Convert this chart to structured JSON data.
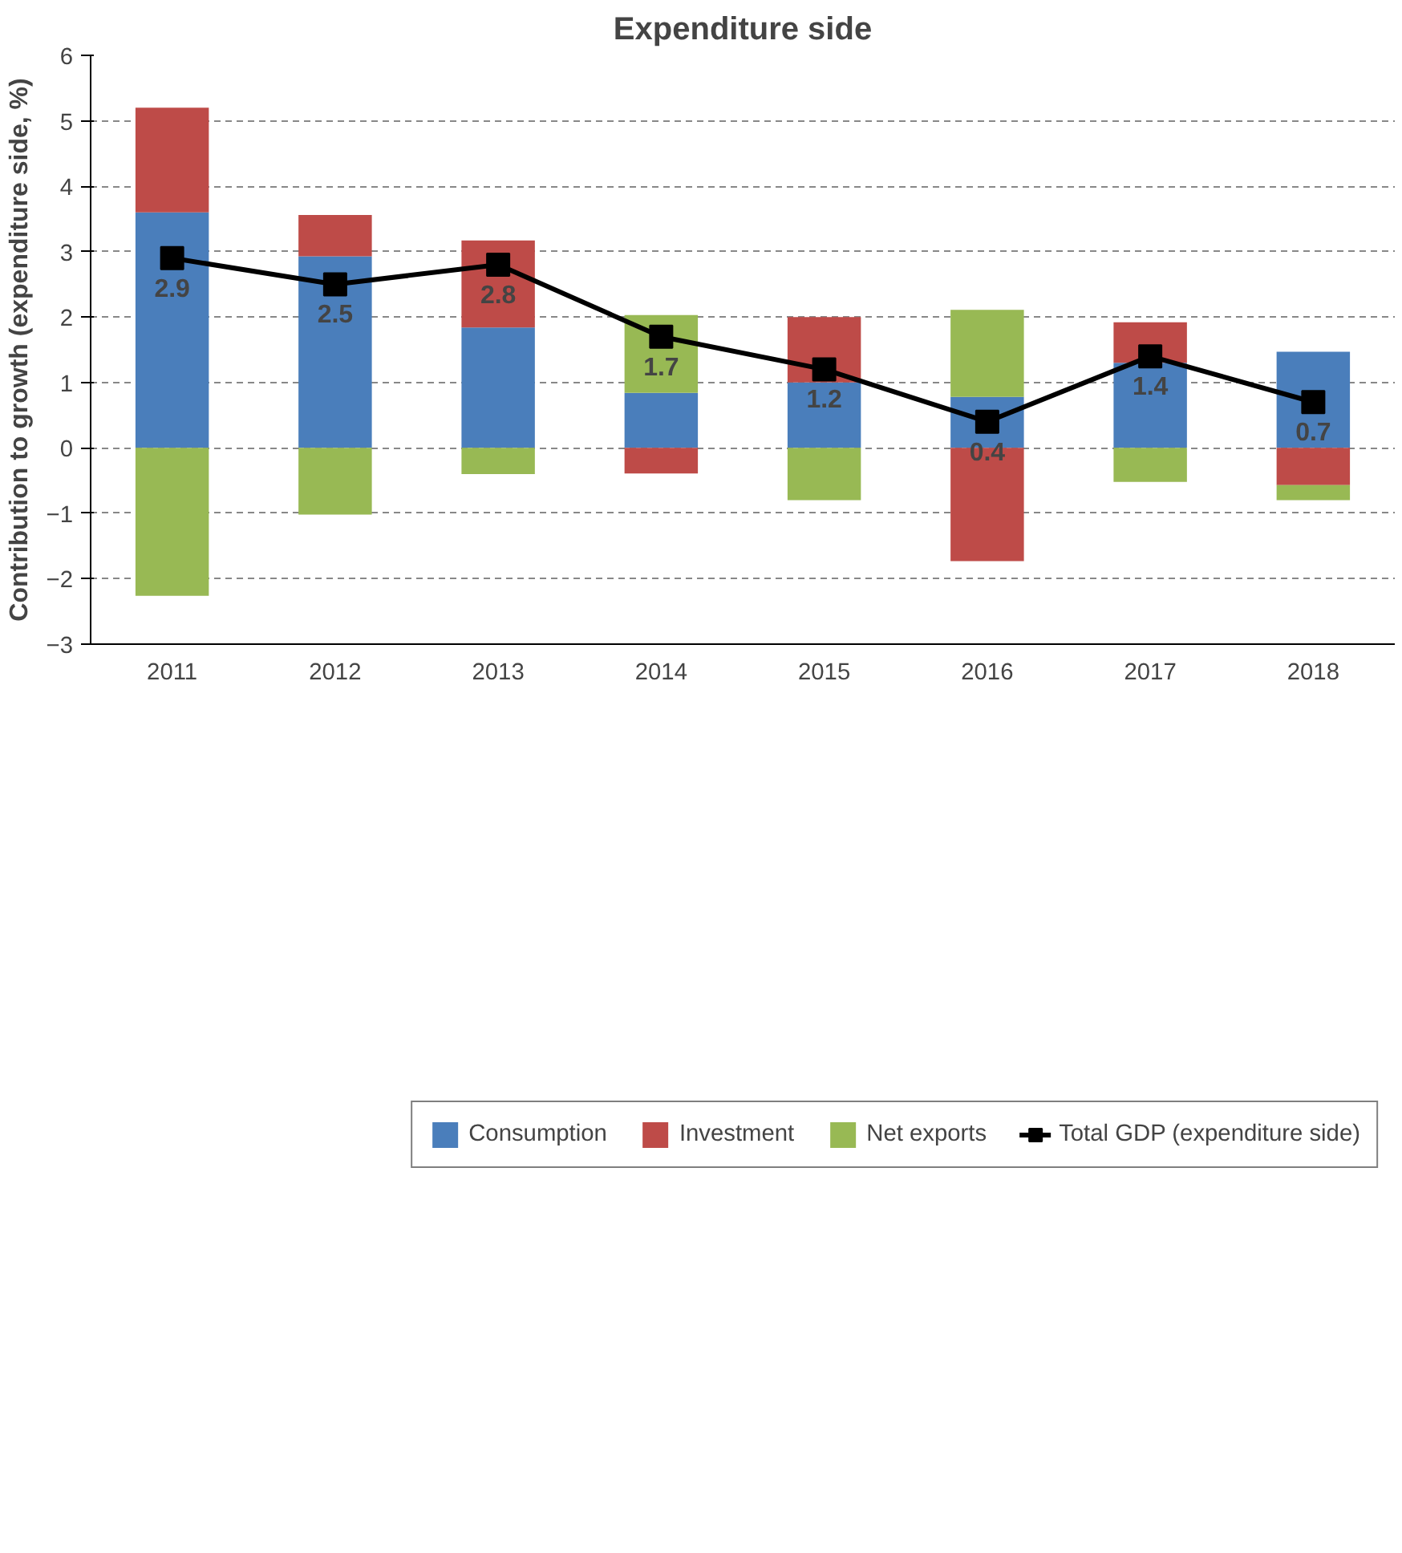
{
  "chart_data": {
    "type": "bar",
    "title": "Expenditure side",
    "ylabel": "Contribution to growth (expenditure side, %)",
    "categories": [
      "2011",
      "2012",
      "2013",
      "2014",
      "2015",
      "2016",
      "2017",
      "2018"
    ],
    "stacked": true,
    "series": [
      {
        "name": "Consumption",
        "color": "#4a7ebb",
        "values": [
          3.6,
          2.93,
          1.84,
          0.84,
          1.0,
          0.78,
          1.3,
          1.47
        ]
      },
      {
        "name": "Investment",
        "color": "#be4b48",
        "values": [
          1.6,
          0.63,
          1.33,
          -0.39,
          1.0,
          -1.73,
          0.62,
          -0.57
        ]
      },
      {
        "name": "Net exports",
        "color": "#98b954",
        "values": [
          -2.26,
          -1.02,
          -0.4,
          1.19,
          -0.8,
          1.33,
          -0.52,
          -0.23
        ]
      },
      {
        "name": "Total GDP (expenditure side)",
        "type": "line",
        "color": "#000000",
        "marker": "square",
        "values": [
          2.9,
          2.5,
          2.8,
          1.7,
          1.2,
          0.4,
          1.4,
          0.7
        ],
        "value_labels": [
          "2.9",
          "2.5",
          "2.8",
          "1.7",
          "1.2",
          "0.4",
          "1.4",
          "0.7"
        ]
      }
    ],
    "ylim": [
      -3,
      6
    ],
    "yticks": [
      -3,
      -2,
      -1,
      0,
      1,
      2,
      3,
      4,
      5,
      6
    ],
    "grid": "y",
    "legend": "bottom"
  }
}
